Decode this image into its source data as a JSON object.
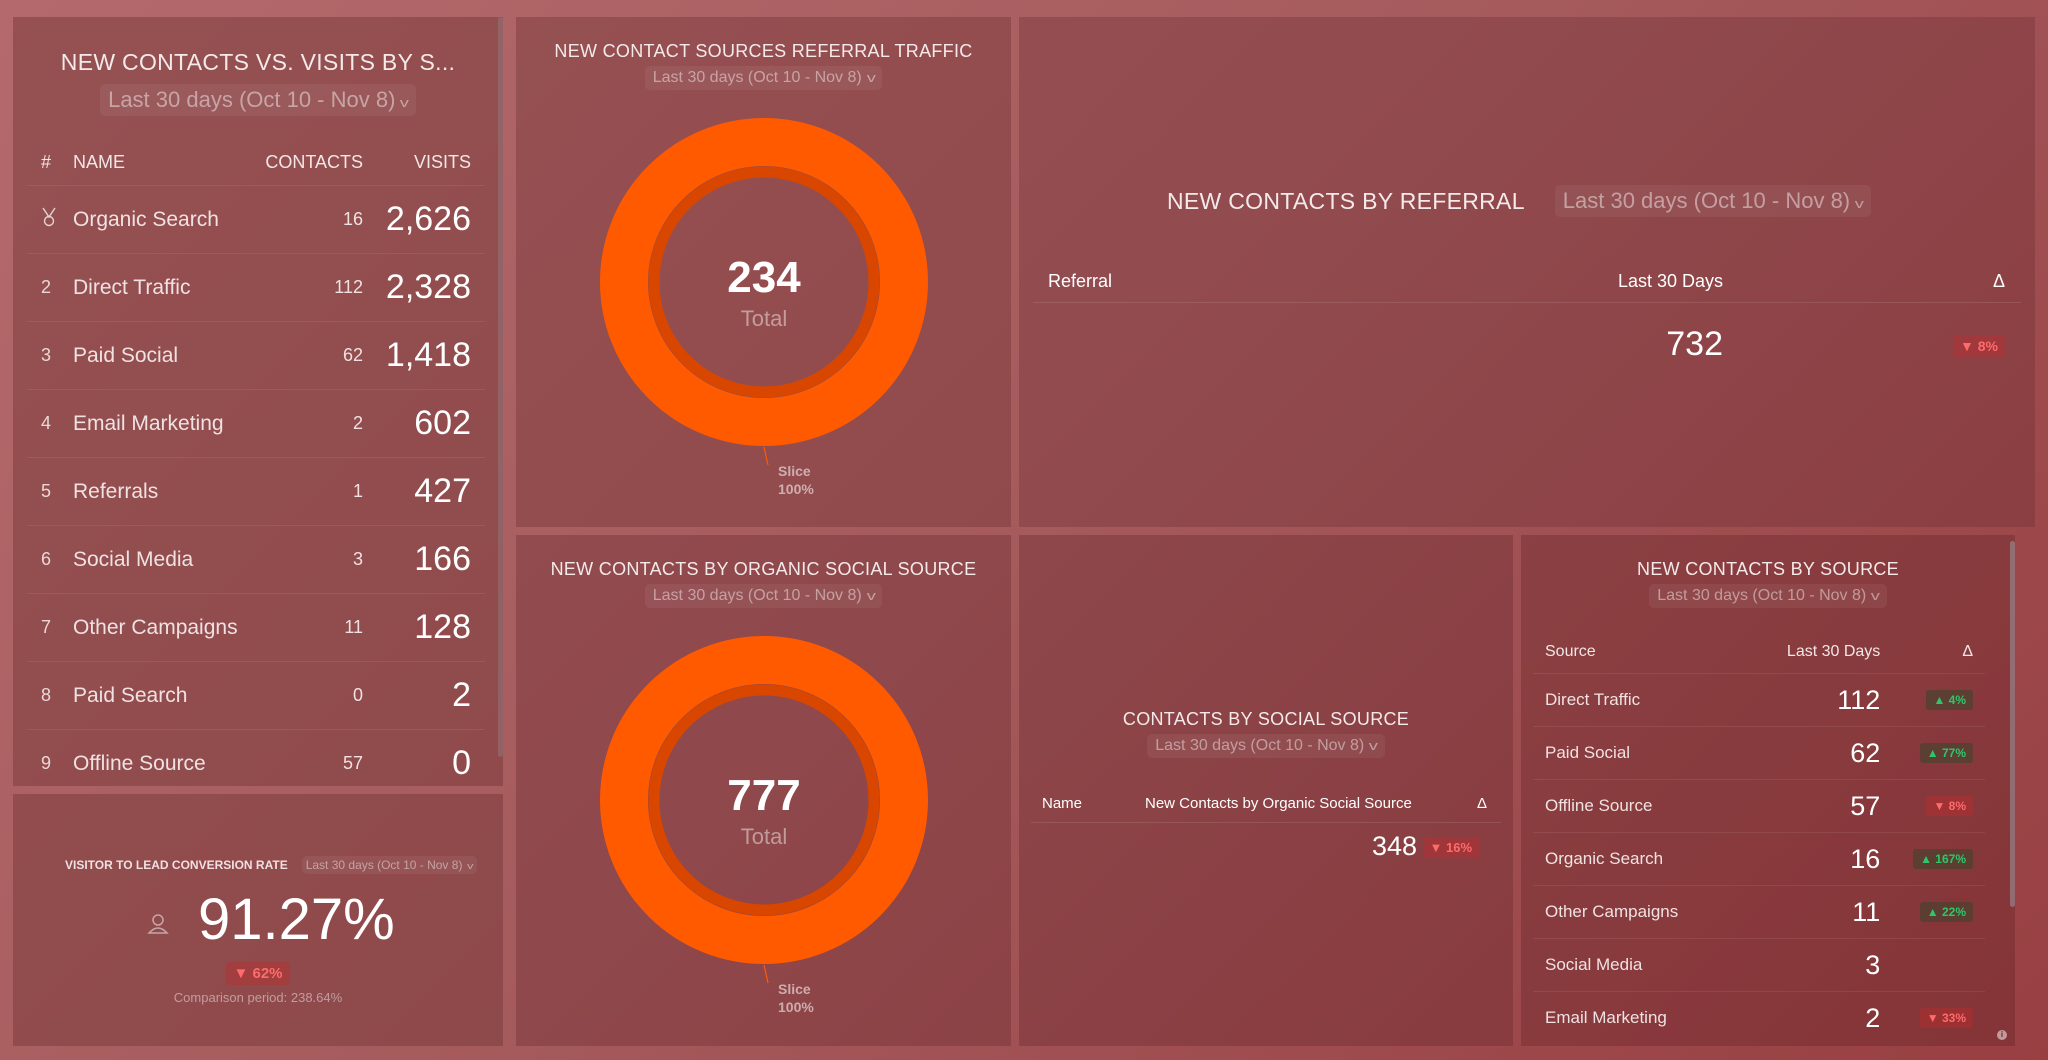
{
  "colors": {
    "donut": "#ff5a00",
    "donut_inner": "#d94600",
    "up": "#2fc66a",
    "down": "#ff6b6b"
  },
  "date_range": "Last 30 days (Oct 10 - Nov 8)",
  "visits_panel": {
    "title": "NEW CONTACTS VS. VISITS BY S...",
    "headers": [
      "#",
      "NAME",
      "CONTACTS",
      "VISITS"
    ],
    "rows": [
      {
        "rank": "medal-icon",
        "name": "Organic Search",
        "contacts": "16",
        "visits": "2,626"
      },
      {
        "rank": "2",
        "name": "Direct Traffic",
        "contacts": "112",
        "visits": "2,328"
      },
      {
        "rank": "3",
        "name": "Paid Social",
        "contacts": "62",
        "visits": "1,418"
      },
      {
        "rank": "4",
        "name": "Email Marketing",
        "contacts": "2",
        "visits": "602"
      },
      {
        "rank": "5",
        "name": "Referrals",
        "contacts": "1",
        "visits": "427"
      },
      {
        "rank": "6",
        "name": "Social Media",
        "contacts": "3",
        "visits": "166"
      },
      {
        "rank": "7",
        "name": "Other Campaigns",
        "contacts": "11",
        "visits": "128"
      },
      {
        "rank": "8",
        "name": "Paid Search",
        "contacts": "0",
        "visits": "2"
      },
      {
        "rank": "9",
        "name": "Offline Source",
        "contacts": "57",
        "visits": "0"
      }
    ]
  },
  "conversion": {
    "title": "VISITOR TO LEAD CONVERSION RATE",
    "value": "91.27%",
    "delta": "▼ 62%",
    "comparison": "Comparison period: 238.64%",
    "icon": "user-icon"
  },
  "chart_data": [
    {
      "type": "pie",
      "title": "NEW CONTACT SOURCES REFERRAL TRAFFIC",
      "total": "234",
      "total_label": "Total",
      "slices": [
        {
          "name": "Slice",
          "percent": 100,
          "label": "100%"
        }
      ]
    },
    {
      "type": "pie",
      "title": "NEW CONTACTS BY ORGANIC SOCIAL SOURCE",
      "total": "777",
      "total_label": "Total",
      "slices": [
        {
          "name": "Slice",
          "percent": 100,
          "label": "100%"
        }
      ]
    }
  ],
  "referral": {
    "title": "NEW CONTACTS BY REFERRAL",
    "headers": [
      "Referral",
      "Last 30 Days",
      "Δ"
    ],
    "value": "732",
    "delta": "▼ 8%"
  },
  "social": {
    "title": "CONTACTS BY SOCIAL SOURCE",
    "headers": [
      "Name",
      "New Contacts by Organic Social Source",
      "Δ"
    ],
    "value": "348",
    "delta": "▼ 16%"
  },
  "source": {
    "title": "NEW CONTACTS BY SOURCE",
    "headers": [
      "Source",
      "Last 30 Days",
      "Δ"
    ],
    "rows": [
      {
        "name": "Direct Traffic",
        "value": "112",
        "delta": "▲ 4%",
        "dir": "up"
      },
      {
        "name": "Paid Social",
        "value": "62",
        "delta": "▲ 77%",
        "dir": "up"
      },
      {
        "name": "Offline Source",
        "value": "57",
        "delta": "▼ 8%",
        "dir": "down"
      },
      {
        "name": "Organic Search",
        "value": "16",
        "delta": "▲ 167%",
        "dir": "up"
      },
      {
        "name": "Other Campaigns",
        "value": "11",
        "delta": "▲ 22%",
        "dir": "up"
      },
      {
        "name": "Social Media",
        "value": "3",
        "delta": "",
        "dir": ""
      },
      {
        "name": "Email Marketing",
        "value": "2",
        "delta": "▼ 33%",
        "dir": "down"
      }
    ]
  }
}
